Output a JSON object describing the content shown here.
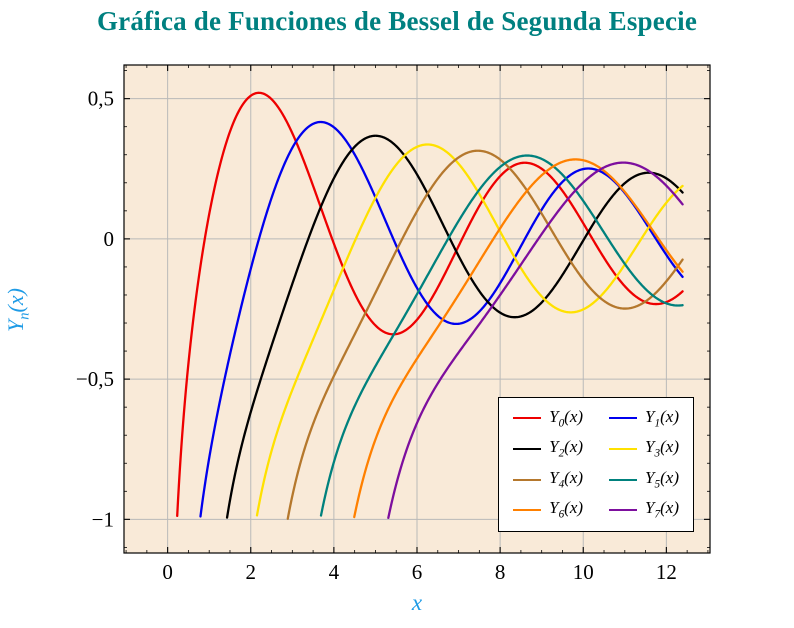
{
  "chart_data": {
    "type": "line",
    "title": "Gráfica de Funciones de Bessel de Segunda Especie",
    "xlabel": "x",
    "ylabel": "Y_n(x)",
    "ylabel_parts": {
      "base": "Y",
      "sub": "n",
      "suffix": "(x)"
    },
    "function_family": "Bessel functions of the second kind Y_n(x), n = 0..7",
    "domain": [
      0,
      12.4
    ],
    "clip_y_min": -1,
    "sample_x_step": 0.02,
    "xlim": [
      -1.05,
      13.05
    ],
    "ylim": [
      -1.12,
      0.62
    ],
    "grid": true,
    "legend_position": "lower right",
    "x_ticks": [
      {
        "v": 0,
        "label": "0"
      },
      {
        "v": 2,
        "label": "2"
      },
      {
        "v": 4,
        "label": "4"
      },
      {
        "v": 6,
        "label": "6"
      },
      {
        "v": 8,
        "label": "8"
      },
      {
        "v": 10,
        "label": "10"
      },
      {
        "v": 12,
        "label": "12"
      }
    ],
    "y_ticks": [
      {
        "v": 0.5,
        "label": "0,5"
      },
      {
        "v": 0,
        "label": "0"
      },
      {
        "v": -0.5,
        "label": "−0,5"
      },
      {
        "v": -1,
        "label": "−1"
      }
    ],
    "minor_x_step": 0.5,
    "minor_y_step": 0.1,
    "series": [
      {
        "label": "Y_0(x)",
        "n": 0,
        "color": "#ee0000",
        "first_zero": 0.894,
        "peak": {
          "x": 2.2,
          "y": 0.521
        }
      },
      {
        "label": "Y_1(x)",
        "n": 1,
        "color": "#0000ee",
        "first_zero": 2.197,
        "peak": {
          "x": 3.68,
          "y": 0.417
        }
      },
      {
        "label": "Y_2(x)",
        "n": 2,
        "color": "#000000",
        "first_zero": 3.384,
        "peak": {
          "x": 5.03,
          "y": 0.367
        }
      },
      {
        "label": "Y_3(x)",
        "n": 3,
        "color": "#ffe100",
        "first_zero": 4.527,
        "peak": {
          "x": 6.36,
          "y": 0.336
        }
      },
      {
        "label": "Y_4(x)",
        "n": 4,
        "color": "#b5782d",
        "first_zero": 5.645,
        "peak": {
          "x": 7.66,
          "y": 0.313
        }
      },
      {
        "label": "Y_5(x)",
        "n": 5,
        "color": "#00817d",
        "first_zero": 6.747,
        "peak": {
          "x": 8.93,
          "y": 0.296
        }
      },
      {
        "label": "Y_6(x)",
        "n": 6,
        "color": "#ff8000",
        "first_zero": 7.838,
        "peak": {
          "x": 10.18,
          "y": 0.281
        }
      },
      {
        "label": "Y_7(x)",
        "n": 7,
        "color": "#7d0f9e",
        "first_zero": 8.919,
        "peak": {
          "x": 11.42,
          "y": 0.269
        }
      }
    ],
    "colors": {
      "title": "#008080",
      "axis_label": "#1e9be6",
      "tick_label": "#000000",
      "plot_background": "#f9ead8",
      "grid": "#b9b9b9",
      "frame": "#000000",
      "legend_background": "#ffffff"
    }
  }
}
